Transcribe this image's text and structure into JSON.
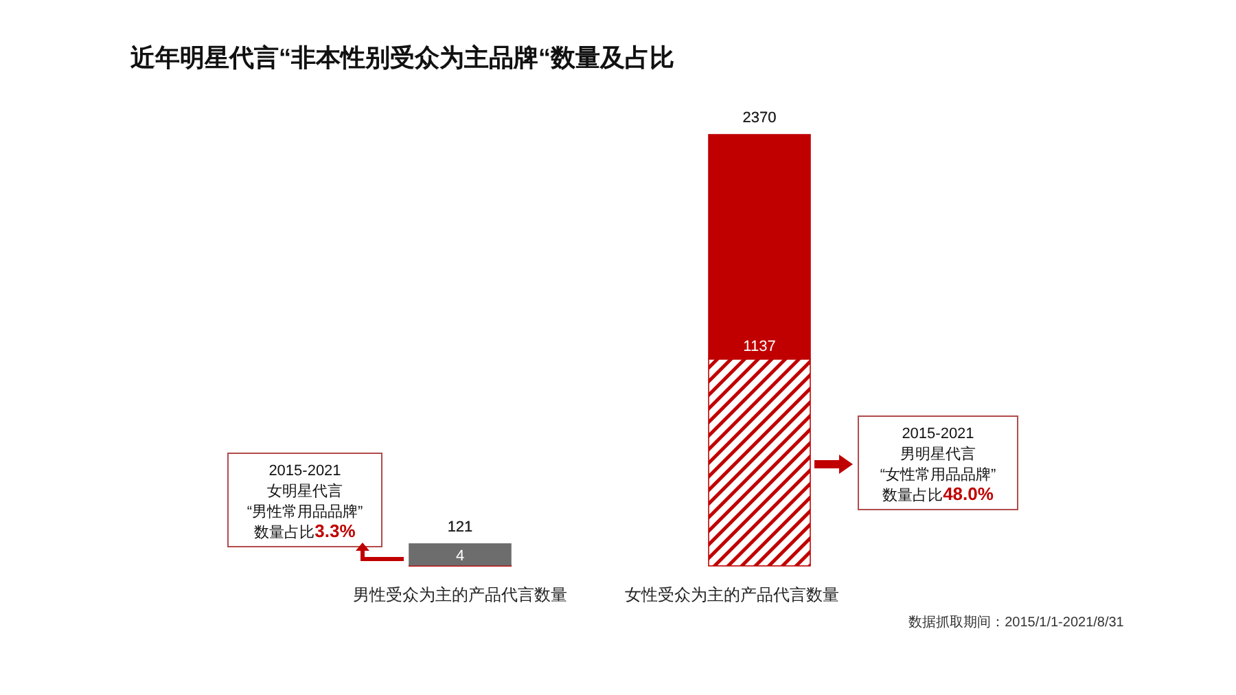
{
  "chart_data": {
    "type": "bar",
    "title": "近年明星代言“非本性别受众为主品牌“数量及占比",
    "categories": [
      "男性受众为主的产品代言数量",
      "女性受众为主的产品代言数量"
    ],
    "stacked": true,
    "series": [
      {
        "colors": [
          "#6d6d6d",
          "#c00000"
        ],
        "values": [
          4,
          1137
        ],
        "value_labels": [
          "4",
          "1137"
        ]
      },
      {
        "colors": [
          "#6d6d6d",
          "#c00000"
        ],
        "values": [
          117,
          1233
        ]
      }
    ],
    "totals": [
      "121",
      "2370"
    ],
    "annotations": [
      "2015-2021\n女明星代言\n“男性常用品品牌”\n数量占比3.3%",
      "2015-2021\n男明星代言\n“女性常用品品牌”\n数量占比48.0%",
      "数据抓取期间：2015/1/1-2021/8/31"
    ]
  }
}
